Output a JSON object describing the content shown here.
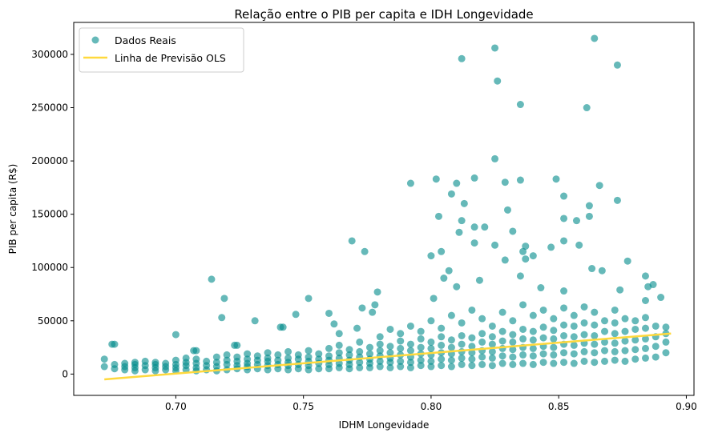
{
  "chart_data": {
    "type": "scatter",
    "title": "Relação entre o PIB per capita e IDH Longevidade",
    "xlabel": "IDHM Longevidade",
    "ylabel": "PIB per capita (R$)",
    "xlim": [
      0.66,
      0.903
    ],
    "ylim": [
      -20000,
      330000
    ],
    "xticks": [
      "0.70",
      "0.75",
      "0.80",
      "0.85",
      "0.90"
    ],
    "xtick_values": [
      0.7,
      0.75,
      0.8,
      0.85,
      0.9
    ],
    "yticks": [
      "0",
      "50000",
      "100000",
      "150000",
      "200000",
      "250000",
      "300000"
    ],
    "ytick_values": [
      0,
      50000,
      100000,
      150000,
      200000,
      250000,
      300000
    ],
    "grid": false,
    "legend_position": "top-left",
    "legend": [
      "Dados Reais",
      "Linha de Previsão OLS"
    ],
    "colors": {
      "points": "#008B8B",
      "line": "#FFD93D"
    },
    "ols_line": {
      "x": [
        0.672,
        0.894
      ],
      "y": [
        -5000,
        38000
      ]
    },
    "series": [
      {
        "name": "Dados Reais",
        "groups": [
          {
            "x": 0.672,
            "y": [
              7000,
              14000
            ]
          },
          {
            "x": 0.676,
            "y": [
              5000,
              9000,
              28000
            ]
          },
          {
            "x": 0.68,
            "y": [
              4000,
              7000,
              10000
            ]
          },
          {
            "x": 0.684,
            "y": [
              3000,
              6000,
              9000,
              11000
            ]
          },
          {
            "x": 0.688,
            "y": [
              4000,
              8000,
              12000
            ]
          },
          {
            "x": 0.692,
            "y": [
              3000,
              6000,
              9000,
              11000
            ]
          },
          {
            "x": 0.696,
            "y": [
              4000,
              7000,
              10000
            ]
          },
          {
            "x": 0.7,
            "y": [
              3000,
              6000,
              9000,
              13000,
              37000
            ]
          },
          {
            "x": 0.704,
            "y": [
              4000,
              8000,
              11000,
              15000
            ]
          },
          {
            "x": 0.708,
            "y": [
              3000,
              6000,
              10000,
              14000,
              22000
            ]
          },
          {
            "x": 0.712,
            "y": [
              4000,
              8000,
              12000
            ]
          },
          {
            "x": 0.716,
            "y": [
              3000,
              7000,
              11000,
              16000
            ]
          },
          {
            "x": 0.72,
            "y": [
              4000,
              9000,
              13000,
              18000
            ]
          },
          {
            "x": 0.724,
            "y": [
              5000,
              8000,
              12000,
              16000,
              27000
            ]
          },
          {
            "x": 0.728,
            "y": [
              4000,
              7000,
              10000,
              14000,
              19000
            ]
          },
          {
            "x": 0.732,
            "y": [
              5000,
              9000,
              13000,
              17000
            ]
          },
          {
            "x": 0.736,
            "y": [
              4000,
              8000,
              12000,
              15000,
              20000
            ]
          },
          {
            "x": 0.74,
            "y": [
              5000,
              9000,
              13000,
              18000
            ]
          },
          {
            "x": 0.744,
            "y": [
              4000,
              8000,
              11000,
              15000,
              21000
            ]
          },
          {
            "x": 0.748,
            "y": [
              5000,
              9000,
              14000,
              18000
            ]
          },
          {
            "x": 0.752,
            "y": [
              4000,
              8000,
              12000,
              16000,
              22000
            ]
          },
          {
            "x": 0.756,
            "y": [
              5000,
              10000,
              14000,
              19000
            ]
          },
          {
            "x": 0.76,
            "y": [
              5000,
              9000,
              13000,
              17000,
              24000
            ]
          },
          {
            "x": 0.764,
            "y": [
              6000,
              10000,
              15000,
              20000,
              27000,
              38000
            ]
          },
          {
            "x": 0.768,
            "y": [
              5000,
              9000,
              13000,
              18000,
              23000
            ]
          },
          {
            "x": 0.772,
            "y": [
              6000,
              11000,
              16000,
              21000,
              30000
            ]
          },
          {
            "x": 0.776,
            "y": [
              6000,
              10000,
              14000,
              19000,
              25000
            ]
          },
          {
            "x": 0.78,
            "y": [
              7000,
              12000,
              17000,
              22000,
              28000,
              35000
            ]
          },
          {
            "x": 0.784,
            "y": [
              6000,
              11000,
              15000,
              20000,
              26000,
              42000
            ]
          },
          {
            "x": 0.788,
            "y": [
              7000,
              12000,
              18000,
              24000,
              31000,
              38000
            ]
          },
          {
            "x": 0.792,
            "y": [
              6000,
              11000,
              16000,
              22000,
              28000,
              45000
            ]
          },
          {
            "x": 0.796,
            "y": [
              8000,
              13000,
              19000,
              25000,
              33000,
              40000
            ]
          },
          {
            "x": 0.8,
            "y": [
              7000,
              12000,
              18000,
              24000,
              30000,
              50000
            ]
          },
          {
            "x": 0.804,
            "y": [
              8000,
              14000,
              20000,
              27000,
              35000,
              43000
            ]
          },
          {
            "x": 0.808,
            "y": [
              7000,
              13000,
              19000,
              25000,
              32000,
              55000
            ]
          },
          {
            "x": 0.812,
            "y": [
              9000,
              15000,
              21000,
              28000,
              36000,
              48000
            ]
          },
          {
            "x": 0.816,
            "y": [
              8000,
              14000,
              20000,
              26000,
              34000,
              60000
            ]
          },
          {
            "x": 0.82,
            "y": [
              9000,
              16000,
              22000,
              30000,
              38000,
              52000
            ]
          },
          {
            "x": 0.824,
            "y": [
              8000,
              15000,
              21000,
              28000,
              35000,
              45000
            ]
          },
          {
            "x": 0.828,
            "y": [
              10000,
              17000,
              24000,
              31000,
              40000,
              58000
            ]
          },
          {
            "x": 0.832,
            "y": [
              9000,
              16000,
              23000,
              30000,
              37000,
              50000
            ]
          },
          {
            "x": 0.836,
            "y": [
              10000,
              18000,
              25000,
              33000,
              42000,
              65000
            ]
          },
          {
            "x": 0.84,
            "y": [
              9000,
              17000,
              24000,
              32000,
              40000,
              55000
            ]
          },
          {
            "x": 0.844,
            "y": [
              11000,
              19000,
              26000,
              34000,
              44000,
              60000
            ]
          },
          {
            "x": 0.848,
            "y": [
              10000,
              18000,
              25000,
              33000,
              41000,
              52000
            ]
          },
          {
            "x": 0.852,
            "y": [
              11000,
              20000,
              28000,
              36000,
              46000,
              62000
            ]
          },
          {
            "x": 0.856,
            "y": [
              10000,
              19000,
              27000,
              35000,
              45000,
              55000
            ]
          },
          {
            "x": 0.86,
            "y": [
              12000,
              21000,
              29000,
              37000,
              48000,
              63000
            ]
          },
          {
            "x": 0.864,
            "y": [
              11000,
              20000,
              28000,
              36000,
              46000,
              58000
            ]
          },
          {
            "x": 0.868,
            "y": [
              12000,
              22000,
              30000,
              40000,
              50000
            ]
          },
          {
            "x": 0.872,
            "y": [
              13000,
              21000,
              29000,
              38000,
              48000,
              60000
            ]
          },
          {
            "x": 0.876,
            "y": [
              12000,
              22000,
              31000,
              40000,
              52000
            ]
          },
          {
            "x": 0.88,
            "y": [
              14000,
              23000,
              32000,
              42000,
              50000
            ]
          },
          {
            "x": 0.884,
            "y": [
              15000,
              24000,
              33000,
              43000,
              53000
            ]
          },
          {
            "x": 0.888,
            "y": [
              16000,
              26000,
              35000,
              45000
            ]
          },
          {
            "x": 0.892,
            "y": [
              20000,
              30000,
              38000,
              44000
            ]
          },
          {
            "x": 0.812,
            "y": [
              296000
            ]
          },
          {
            "x": 0.825,
            "y": [
              306000,
              121000
            ]
          },
          {
            "x": 0.826,
            "y": [
              275000
            ]
          },
          {
            "x": 0.835,
            "y": [
              253000,
              182000,
              92000
            ]
          },
          {
            "x": 0.864,
            "y": [
              315000
            ]
          },
          {
            "x": 0.873,
            "y": [
              290000,
              163000
            ]
          },
          {
            "x": 0.861,
            "y": [
              250000
            ]
          },
          {
            "x": 0.825,
            "y": [
              202000
            ]
          },
          {
            "x": 0.792,
            "y": [
              179000
            ]
          },
          {
            "x": 0.802,
            "y": [
              183000
            ]
          },
          {
            "x": 0.81,
            "y": [
              179000,
              82000
            ]
          },
          {
            "x": 0.817,
            "y": [
              184000,
              138000,
              123000
            ]
          },
          {
            "x": 0.829,
            "y": [
              180000,
              107000
            ]
          },
          {
            "x": 0.849,
            "y": [
              183000
            ]
          },
          {
            "x": 0.852,
            "y": [
              167000,
              146000,
              125000,
              78000
            ]
          },
          {
            "x": 0.866,
            "y": [
              177000
            ]
          },
          {
            "x": 0.808,
            "y": [
              169000
            ]
          },
          {
            "x": 0.813,
            "y": [
              160000
            ]
          },
          {
            "x": 0.83,
            "y": [
              154000
            ]
          },
          {
            "x": 0.803,
            "y": [
              148000
            ]
          },
          {
            "x": 0.812,
            "y": [
              144000
            ]
          },
          {
            "x": 0.857,
            "y": [
              144000
            ]
          },
          {
            "x": 0.862,
            "y": [
              148000,
              158000
            ]
          },
          {
            "x": 0.821,
            "y": [
              138000
            ]
          },
          {
            "x": 0.811,
            "y": [
              133000
            ]
          },
          {
            "x": 0.832,
            "y": [
              134000
            ]
          },
          {
            "x": 0.877,
            "y": [
              106000
            ]
          },
          {
            "x": 0.858,
            "y": [
              121000
            ]
          },
          {
            "x": 0.769,
            "y": [
              125000
            ]
          },
          {
            "x": 0.774,
            "y": [
              115000
            ]
          },
          {
            "x": 0.8,
            "y": [
              111000
            ]
          },
          {
            "x": 0.804,
            "y": [
              115000
            ]
          },
          {
            "x": 0.837,
            "y": [
              120000,
              108000
            ]
          },
          {
            "x": 0.836,
            "y": [
              115000
            ]
          },
          {
            "x": 0.84,
            "y": [
              111000
            ]
          },
          {
            "x": 0.847,
            "y": [
              119000
            ]
          },
          {
            "x": 0.863,
            "y": [
              99000
            ]
          },
          {
            "x": 0.867,
            "y": [
              97000
            ]
          },
          {
            "x": 0.884,
            "y": [
              92000,
              69000
            ]
          },
          {
            "x": 0.887,
            "y": [
              84000
            ]
          },
          {
            "x": 0.885,
            "y": [
              82000
            ]
          },
          {
            "x": 0.714,
            "y": [
              89000
            ]
          },
          {
            "x": 0.719,
            "y": [
              71000
            ]
          },
          {
            "x": 0.718,
            "y": [
              53000
            ]
          },
          {
            "x": 0.731,
            "y": [
              50000
            ]
          },
          {
            "x": 0.752,
            "y": [
              71000
            ]
          },
          {
            "x": 0.747,
            "y": [
              56000
            ]
          },
          {
            "x": 0.741,
            "y": [
              44000
            ]
          },
          {
            "x": 0.742,
            "y": [
              44000
            ]
          },
          {
            "x": 0.76,
            "y": [
              57000
            ]
          },
          {
            "x": 0.762,
            "y": [
              47000
            ]
          },
          {
            "x": 0.773,
            "y": [
              62000
            ]
          },
          {
            "x": 0.777,
            "y": [
              58000
            ]
          },
          {
            "x": 0.779,
            "y": [
              77000
            ]
          },
          {
            "x": 0.771,
            "y": [
              43000
            ]
          },
          {
            "x": 0.778,
            "y": [
              65000
            ]
          },
          {
            "x": 0.675,
            "y": [
              28000
            ]
          },
          {
            "x": 0.707,
            "y": [
              22000
            ]
          },
          {
            "x": 0.723,
            "y": [
              27000
            ]
          },
          {
            "x": 0.89,
            "y": [
              72000
            ]
          },
          {
            "x": 0.874,
            "y": [
              79000
            ]
          },
          {
            "x": 0.807,
            "y": [
              97000
            ]
          },
          {
            "x": 0.805,
            "y": [
              90000
            ]
          },
          {
            "x": 0.801,
            "y": [
              71000
            ]
          },
          {
            "x": 0.819,
            "y": [
              88000
            ]
          },
          {
            "x": 0.843,
            "y": [
              81000
            ]
          }
        ]
      }
    ]
  }
}
